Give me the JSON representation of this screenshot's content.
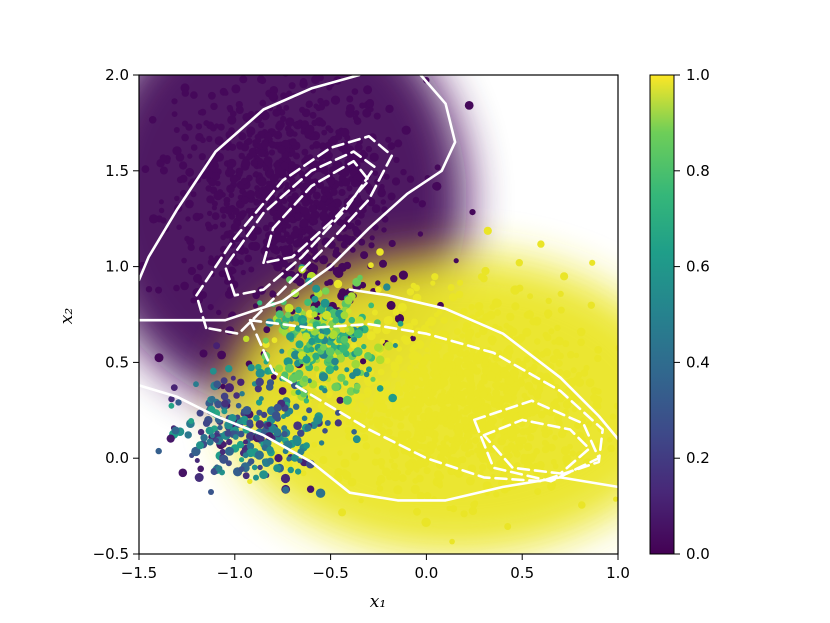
{
  "chart_data": {
    "type": "scatter",
    "title": "",
    "xlabel": "x₁",
    "ylabel": "x₂",
    "xlim": [
      -1.5,
      1.0
    ],
    "ylim": [
      -0.5,
      2.0
    ],
    "xticks": [
      "−1.5",
      "−1.0",
      "−0.5",
      "0.0",
      "0.5",
      "1.0"
    ],
    "yticks": [
      "−0.5",
      "0.0",
      "0.5",
      "1.0",
      "1.5",
      "2.0"
    ],
    "grid": false,
    "colormap": "viridis",
    "colorbar": {
      "range": [
        0.0,
        1.0
      ],
      "ticks": [
        "0.0",
        "0.2",
        "0.4",
        "0.6",
        "0.8",
        "1.0"
      ],
      "placement": "right"
    },
    "series": [
      {
        "kind": "points",
        "description_colors": {
          "low": "#440154",
          "high": "#fde725"
        },
        "clusters": [
          {
            "center": [
              -0.75,
              1.4
            ],
            "spread": [
              0.55,
              0.55
            ],
            "value": 0.02
          },
          {
            "center": [
              0.2,
              0.3
            ],
            "spread": [
              0.6,
              0.45
            ],
            "value": 0.97
          },
          {
            "center": [
              -0.9,
              0.15
            ],
            "spread": [
              0.35,
              0.25
            ],
            "value": 0.15
          },
          {
            "center": [
              -0.55,
              0.6
            ],
            "spread": [
              0.25,
              0.25
            ],
            "value": 0.7
          }
        ]
      },
      {
        "kind": "contour",
        "style": "solid",
        "color": "#ffffff",
        "lines": [
          [
            [
              -1.5,
              0.93
            ],
            [
              -1.45,
              1.05
            ],
            [
              -1.3,
              1.3
            ],
            [
              -1.1,
              1.6
            ],
            [
              -0.85,
              1.82
            ],
            [
              -0.6,
              1.93
            ],
            [
              -0.35,
              2.0
            ]
          ],
          [
            [
              -0.03,
              2.0
            ],
            [
              0.1,
              1.85
            ],
            [
              0.15,
              1.65
            ],
            [
              0.08,
              1.5
            ],
            [
              -0.1,
              1.38
            ],
            [
              -0.3,
              1.2
            ],
            [
              -0.5,
              1.0
            ],
            [
              -0.75,
              0.82
            ],
            [
              -1.05,
              0.72
            ],
            [
              -1.5,
              0.72
            ]
          ],
          [
            [
              -1.5,
              0.38
            ],
            [
              -1.3,
              0.32
            ],
            [
              -1.1,
              0.22
            ],
            [
              -0.85,
              0.12
            ],
            [
              -0.6,
              -0.02
            ],
            [
              -0.4,
              -0.18
            ],
            [
              -0.15,
              -0.22
            ],
            [
              0.1,
              -0.22
            ],
            [
              0.4,
              -0.15
            ],
            [
              0.7,
              -0.1
            ],
            [
              1.0,
              -0.15
            ]
          ],
          [
            [
              -0.4,
              0.88
            ],
            [
              -0.2,
              0.85
            ],
            [
              0.1,
              0.78
            ],
            [
              0.4,
              0.65
            ],
            [
              0.7,
              0.42
            ],
            [
              0.9,
              0.22
            ],
            [
              1.0,
              0.1
            ]
          ]
        ]
      },
      {
        "kind": "contour",
        "style": "dashed",
        "color": "#ffffff",
        "lines": [
          [
            [
              -1.15,
              0.68
            ],
            [
              -1.2,
              0.85
            ],
            [
              -1.0,
              1.15
            ],
            [
              -0.75,
              1.45
            ],
            [
              -0.5,
              1.62
            ],
            [
              -0.3,
              1.68
            ],
            [
              -0.18,
              1.58
            ],
            [
              -0.3,
              1.35
            ],
            [
              -0.55,
              1.08
            ],
            [
              -0.78,
              0.85
            ],
            [
              -0.98,
              0.65
            ],
            [
              -1.15,
              0.68
            ]
          ],
          [
            [
              -1.0,
              0.85
            ],
            [
              -1.05,
              1.0
            ],
            [
              -0.85,
              1.28
            ],
            [
              -0.6,
              1.5
            ],
            [
              -0.38,
              1.6
            ],
            [
              -0.27,
              1.52
            ],
            [
              -0.42,
              1.3
            ],
            [
              -0.65,
              1.05
            ],
            [
              -0.85,
              0.88
            ],
            [
              -1.0,
              0.85
            ]
          ],
          [
            [
              -0.85,
              1.02
            ],
            [
              -0.8,
              1.2
            ],
            [
              -0.6,
              1.42
            ],
            [
              -0.38,
              1.55
            ],
            [
              -0.3,
              1.45
            ],
            [
              -0.48,
              1.25
            ],
            [
              -0.7,
              1.05
            ],
            [
              -0.85,
              1.02
            ]
          ],
          [
            [
              -0.92,
              0.72
            ],
            [
              -0.6,
              0.68
            ],
            [
              -0.3,
              0.7
            ],
            [
              0.0,
              0.65
            ],
            [
              0.35,
              0.55
            ],
            [
              0.7,
              0.35
            ],
            [
              0.92,
              0.15
            ],
            [
              0.9,
              -0.02
            ],
            [
              0.6,
              -0.12
            ],
            [
              0.3,
              -0.1
            ],
            [
              0.0,
              0.0
            ],
            [
              -0.3,
              0.15
            ],
            [
              -0.55,
              0.3
            ],
            [
              -0.8,
              0.45
            ],
            [
              -0.92,
              0.72
            ]
          ],
          [
            [
              0.3,
              0.12
            ],
            [
              0.5,
              0.2
            ],
            [
              0.75,
              0.15
            ],
            [
              0.85,
              0.05
            ],
            [
              0.7,
              -0.08
            ],
            [
              0.45,
              -0.05
            ],
            [
              0.3,
              0.12
            ]
          ],
          [
            [
              0.25,
              0.2
            ],
            [
              0.55,
              0.3
            ],
            [
              0.82,
              0.18
            ],
            [
              0.9,
              0.0
            ],
            [
              0.65,
              -0.12
            ],
            [
              0.35,
              -0.05
            ],
            [
              0.25,
              0.2
            ]
          ]
        ]
      }
    ]
  }
}
